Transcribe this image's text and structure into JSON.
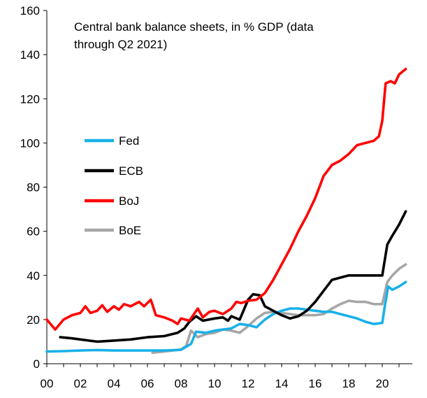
{
  "chart_data": {
    "type": "line",
    "title_lines": [
      "Central bank balance sheets, in % GDP (data",
      "through Q2 2021)"
    ],
    "xlabel": "",
    "ylabel": "",
    "xlim": [
      2000,
      2021.75
    ],
    "ylim": [
      0,
      160
    ],
    "y_ticks": [
      0,
      20,
      40,
      60,
      80,
      100,
      120,
      140,
      160
    ],
    "y_tick_labels": [
      "0",
      "20",
      "40",
      "60",
      "80",
      "100",
      "120",
      "140",
      "160"
    ],
    "x_ticks": [
      2000,
      2002,
      2004,
      2006,
      2008,
      2010,
      2012,
      2014,
      2016,
      2018,
      2020
    ],
    "x_tick_labels": [
      "00",
      "02",
      "04",
      "06",
      "08",
      "10",
      "12",
      "14",
      "16",
      "18",
      "20"
    ],
    "legend_position": "left-middle",
    "grid": false,
    "series": [
      {
        "name": "Fed",
        "color": "#1ab0e8",
        "points": [
          [
            2000,
            5.5
          ],
          [
            2001,
            5.7
          ],
          [
            2002,
            6
          ],
          [
            2003,
            6.2
          ],
          [
            2004,
            6
          ],
          [
            2005,
            6
          ],
          [
            2006,
            6
          ],
          [
            2007,
            6
          ],
          [
            2008,
            6.3
          ],
          [
            2008.6,
            9
          ],
          [
            2008.9,
            14.5
          ],
          [
            2009.5,
            14
          ],
          [
            2010,
            15
          ],
          [
            2011,
            16
          ],
          [
            2011.5,
            18
          ],
          [
            2012,
            17.5
          ],
          [
            2012.5,
            16.5
          ],
          [
            2013,
            20
          ],
          [
            2013.5,
            22.5
          ],
          [
            2014,
            24
          ],
          [
            2014.5,
            25
          ],
          [
            2015,
            25
          ],
          [
            2015.5,
            24.5
          ],
          [
            2016,
            24
          ],
          [
            2016.5,
            23.5
          ],
          [
            2017,
            23.5
          ],
          [
            2017.5,
            22.5
          ],
          [
            2018,
            21.5
          ],
          [
            2018.5,
            20.5
          ],
          [
            2019,
            19
          ],
          [
            2019.5,
            18
          ],
          [
            2020,
            18.5
          ],
          [
            2020.15,
            26
          ],
          [
            2020.35,
            35
          ],
          [
            2020.6,
            33.5
          ],
          [
            2021,
            35
          ],
          [
            2021.4,
            37
          ]
        ]
      },
      {
        "name": "ECB",
        "color": "#000000",
        "points": [
          [
            2000.8,
            12
          ],
          [
            2001.5,
            11.5
          ],
          [
            2002,
            11
          ],
          [
            2002.5,
            10.5
          ],
          [
            2003,
            10
          ],
          [
            2004,
            10.5
          ],
          [
            2005,
            11
          ],
          [
            2006,
            12
          ],
          [
            2007,
            12.5
          ],
          [
            2007.8,
            14
          ],
          [
            2008.2,
            16
          ],
          [
            2008.5,
            19
          ],
          [
            2008.9,
            21.5
          ],
          [
            2009.3,
            19.5
          ],
          [
            2010,
            20.5
          ],
          [
            2010.5,
            21
          ],
          [
            2010.8,
            19.5
          ],
          [
            2011,
            21.5
          ],
          [
            2011.5,
            20
          ],
          [
            2012,
            29
          ],
          [
            2012.3,
            31.5
          ],
          [
            2012.7,
            31
          ],
          [
            2013,
            26
          ],
          [
            2013.5,
            24
          ],
          [
            2014,
            22
          ],
          [
            2014.5,
            20.5
          ],
          [
            2015,
            21.5
          ],
          [
            2015.5,
            24
          ],
          [
            2016,
            28
          ],
          [
            2016.5,
            33
          ],
          [
            2017,
            38
          ],
          [
            2017.5,
            39
          ],
          [
            2018,
            40
          ],
          [
            2018.5,
            40
          ],
          [
            2019,
            40
          ],
          [
            2019.5,
            40
          ],
          [
            2020,
            40
          ],
          [
            2020.3,
            54
          ],
          [
            2020.6,
            58
          ],
          [
            2021,
            63
          ],
          [
            2021.4,
            69
          ]
        ]
      },
      {
        "name": "BoJ",
        "color": "#ff0000",
        "points": [
          [
            2000,
            20
          ],
          [
            2000.5,
            15.5
          ],
          [
            2001,
            20
          ],
          [
            2001.5,
            22
          ],
          [
            2002,
            23
          ],
          [
            2002.3,
            26
          ],
          [
            2002.6,
            23
          ],
          [
            2003,
            24
          ],
          [
            2003.3,
            26.5
          ],
          [
            2003.6,
            23.5
          ],
          [
            2004,
            26
          ],
          [
            2004.3,
            24.5
          ],
          [
            2004.6,
            27
          ],
          [
            2005,
            26
          ],
          [
            2005.5,
            28
          ],
          [
            2005.8,
            26
          ],
          [
            2006.2,
            29
          ],
          [
            2006.5,
            22
          ],
          [
            2007,
            21
          ],
          [
            2007.5,
            19.5
          ],
          [
            2007.8,
            18
          ],
          [
            2008,
            20.5
          ],
          [
            2008.5,
            19.5
          ],
          [
            2009,
            25
          ],
          [
            2009.3,
            21
          ],
          [
            2009.7,
            23.5
          ],
          [
            2010,
            24
          ],
          [
            2010.5,
            22.5
          ],
          [
            2011,
            25
          ],
          [
            2011.3,
            28
          ],
          [
            2011.6,
            27.5
          ],
          [
            2012,
            28.5
          ],
          [
            2012.5,
            29
          ],
          [
            2013,
            32
          ],
          [
            2013.5,
            38
          ],
          [
            2014,
            45
          ],
          [
            2014.5,
            52
          ],
          [
            2015,
            60
          ],
          [
            2015.5,
            67
          ],
          [
            2016,
            75
          ],
          [
            2016.5,
            85
          ],
          [
            2017,
            90
          ],
          [
            2017.5,
            92
          ],
          [
            2018,
            95
          ],
          [
            2018.5,
            99
          ],
          [
            2019,
            100
          ],
          [
            2019.5,
            101
          ],
          [
            2019.8,
            103
          ],
          [
            2020,
            110
          ],
          [
            2020.2,
            127
          ],
          [
            2020.5,
            128
          ],
          [
            2020.75,
            127
          ],
          [
            2021,
            131
          ],
          [
            2021.4,
            133.5
          ]
        ]
      },
      {
        "name": "BoE",
        "color": "#a6a6a6",
        "points": [
          [
            2006.3,
            5
          ],
          [
            2007,
            5.5
          ],
          [
            2007.5,
            6
          ],
          [
            2008,
            6.5
          ],
          [
            2008.3,
            8
          ],
          [
            2008.6,
            15
          ],
          [
            2009,
            12
          ],
          [
            2009.5,
            13.5
          ],
          [
            2010,
            14
          ],
          [
            2010.5,
            15.5
          ],
          [
            2011,
            15
          ],
          [
            2011.5,
            14
          ],
          [
            2012,
            17
          ],
          [
            2012.5,
            20.5
          ],
          [
            2013,
            23
          ],
          [
            2013.5,
            23.5
          ],
          [
            2014,
            23
          ],
          [
            2014.5,
            22.5
          ],
          [
            2015,
            22
          ],
          [
            2015.5,
            22
          ],
          [
            2016,
            22
          ],
          [
            2016.5,
            22.5
          ],
          [
            2017,
            25
          ],
          [
            2017.5,
            27
          ],
          [
            2018,
            28.5
          ],
          [
            2018.5,
            28
          ],
          [
            2019,
            28
          ],
          [
            2019.5,
            27
          ],
          [
            2020,
            27
          ],
          [
            2020.3,
            37
          ],
          [
            2020.6,
            40
          ],
          [
            2021,
            43
          ],
          [
            2021.4,
            45
          ]
        ]
      }
    ]
  }
}
